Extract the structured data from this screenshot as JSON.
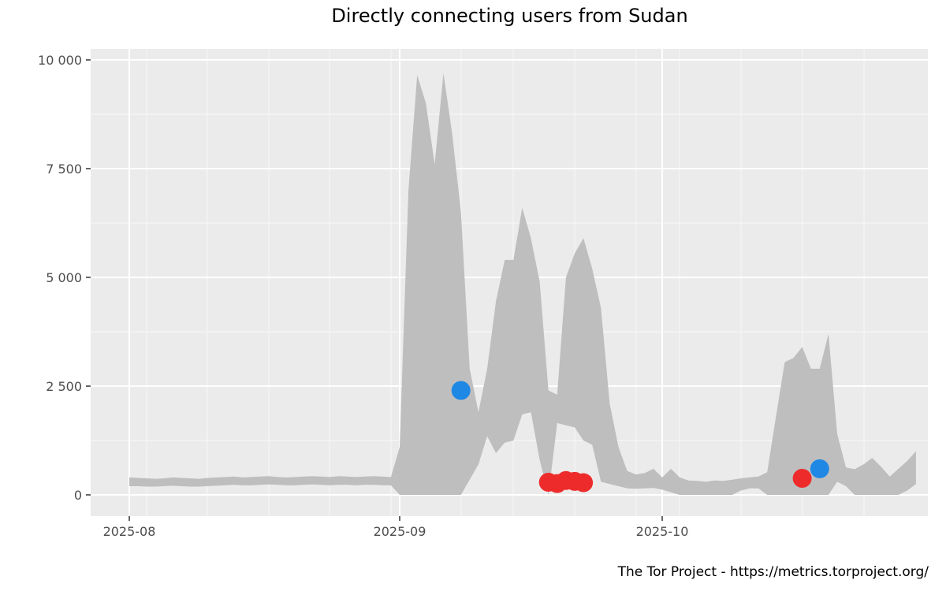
{
  "chart_data": {
    "type": "area",
    "title": "Directly connecting users from Sudan",
    "caption": "The Tor Project - https://metrics.torproject.org/",
    "xlabel": "",
    "ylabel": "",
    "ylim": [
      0,
      10000
    ],
    "y_ticks": [
      0,
      2500,
      5000,
      7500,
      10000
    ],
    "y_tick_labels": [
      "0",
      "2 500",
      "5 000",
      "7 500",
      "10 000"
    ],
    "x_tick_labels": [
      "2025-08",
      "2025-09",
      "2025-10"
    ],
    "grid": true,
    "start_date": "2025-08-01",
    "series": [
      {
        "name": "expected range upper",
        "values": [
          400,
          390,
          380,
          370,
          380,
          400,
          390,
          380,
          370,
          390,
          400,
          410,
          420,
          400,
          410,
          420,
          430,
          410,
          400,
          410,
          420,
          430,
          420,
          410,
          430,
          420,
          410,
          420,
          430,
          420,
          410,
          1100,
          7000,
          9650,
          9000,
          7600,
          9700,
          8300,
          6500,
          2900,
          1900,
          2900,
          4450,
          5400,
          5400,
          6600,
          5900,
          4900,
          2400,
          2300,
          5000,
          5550,
          5900,
          5200,
          4300,
          2100,
          1100,
          550,
          470,
          500,
          600,
          400,
          600,
          400,
          330,
          320,
          300,
          330,
          320,
          350,
          380,
          400,
          420,
          520,
          1800,
          3050,
          3150,
          3400,
          2900,
          2900,
          3700,
          1400,
          630,
          590,
          700,
          850,
          650,
          420,
          600,
          780,
          1000
        ]
      },
      {
        "name": "expected range lower",
        "values": [
          200,
          200,
          190,
          190,
          200,
          210,
          200,
          190,
          190,
          200,
          210,
          220,
          230,
          220,
          220,
          230,
          240,
          230,
          220,
          220,
          230,
          240,
          230,
          220,
          230,
          230,
          220,
          230,
          230,
          220,
          220,
          0,
          0,
          0,
          0,
          0,
          0,
          0,
          0,
          350,
          700,
          1350,
          960,
          1200,
          1250,
          1850,
          1900,
          800,
          0,
          1650,
          1600,
          1550,
          1250,
          1150,
          300,
          250,
          200,
          150,
          140,
          150,
          160,
          120,
          60,
          0,
          0,
          0,
          0,
          0,
          0,
          0,
          100,
          150,
          150,
          0,
          0,
          0,
          0,
          0,
          0,
          0,
          0,
          300,
          200,
          0,
          0,
          0,
          0,
          0,
          0,
          100,
          250
        ]
      }
    ],
    "events": [
      {
        "type": "upturn",
        "color": "#1f88e5",
        "date": "2025-09-08",
        "value": 2400
      },
      {
        "type": "downturn",
        "color": "#ee2b2b",
        "date": "2025-09-18",
        "value": 290
      },
      {
        "type": "downturn",
        "color": "#ee2b2b",
        "date": "2025-09-19",
        "value": 260
      },
      {
        "type": "downturn",
        "color": "#ee2b2b",
        "date": "2025-09-20",
        "value": 330
      },
      {
        "type": "downturn",
        "color": "#ee2b2b",
        "date": "2025-09-21",
        "value": 310
      },
      {
        "type": "downturn",
        "color": "#ee2b2b",
        "date": "2025-09-22",
        "value": 280
      },
      {
        "type": "downturn",
        "color": "#ee2b2b",
        "date": "2025-10-17",
        "value": 380
      },
      {
        "type": "upturn",
        "color": "#1f88e5",
        "date": "2025-10-19",
        "value": 600
      }
    ],
    "colors": {
      "panel": "#ebebeb",
      "grid": "#ffffff",
      "ribbon": "#bebebe",
      "upturn": "#1f88e5",
      "downturn": "#ee2b2b"
    }
  }
}
